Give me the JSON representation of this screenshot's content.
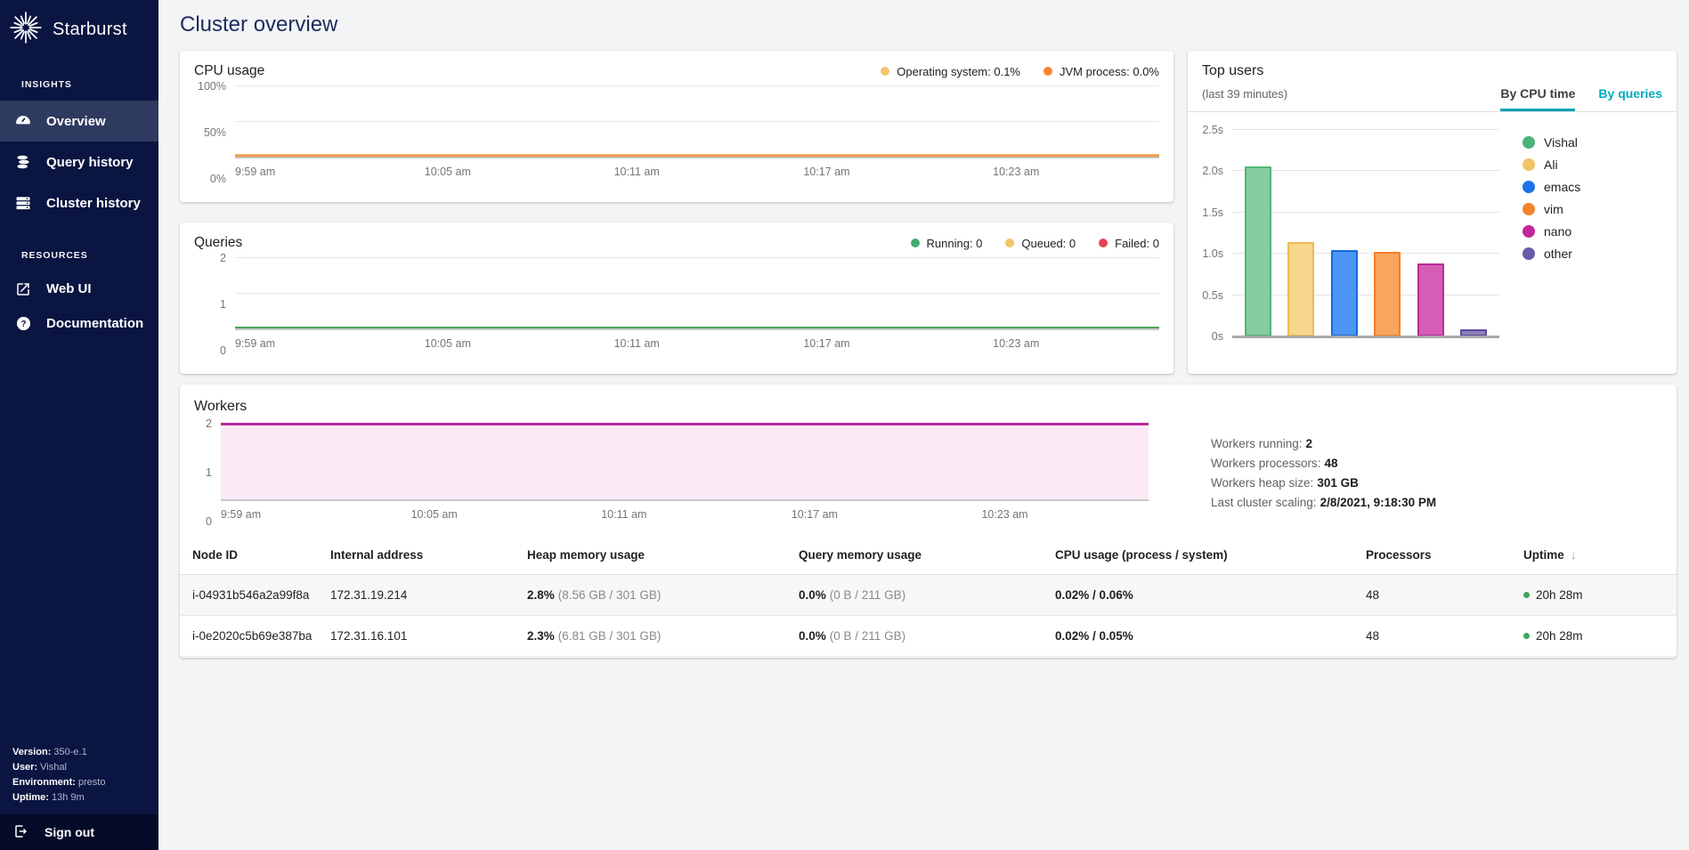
{
  "app": {
    "accent_teal": "#00a3b4"
  },
  "header": {
    "title": "Cluster overview"
  },
  "sidebar": {
    "logo_text": "Starburst",
    "insights_label": "INSIGHTS",
    "resources_label": "RESOURCES",
    "nav_insights": [
      {
        "label": "Overview",
        "icon": "gauge-icon",
        "active": true
      },
      {
        "label": "Query history",
        "icon": "database-icon",
        "active": false
      },
      {
        "label": "Cluster history",
        "icon": "server-icon",
        "active": false
      }
    ],
    "nav_resources": [
      {
        "label": "Web UI",
        "icon": "external-link-icon"
      },
      {
        "label": "Documentation",
        "icon": "help-icon"
      }
    ],
    "footer": {
      "version_label": "Version:",
      "version_value": "350-e.1",
      "user_label": "User:",
      "user_value": "Vishal",
      "environment_label": "Environment:",
      "environment_value": "presto",
      "uptime_label": "Uptime:",
      "uptime_value": "13h 9m"
    },
    "sign_out_label": "Sign out"
  },
  "cpu_card": {
    "title": "CPU usage",
    "legend": [
      {
        "label": "Operating system: 0.1%",
        "color": "#f3c46c"
      },
      {
        "label": "JVM process: 0.0%",
        "color": "#f9842d"
      }
    ]
  },
  "queries_card": {
    "title": "Queries",
    "legend": [
      {
        "label": "Running: 0",
        "color": "#47ab6c"
      },
      {
        "label": "Queued: 0",
        "color": "#f2c464"
      },
      {
        "label": "Failed: 0",
        "color": "#e8434e"
      }
    ]
  },
  "top_users_card": {
    "title": "Top users",
    "subtitle": "(last 39 minutes)",
    "tabs": [
      {
        "label": "By CPU time",
        "active": true
      },
      {
        "label": "By queries",
        "active": false
      }
    ]
  },
  "workers_card": {
    "title": "Workers",
    "stats": [
      {
        "label": "Workers running:",
        "value": "2"
      },
      {
        "label": "Workers processors:",
        "value": "48"
      },
      {
        "label": "Workers heap size:",
        "value": "301 GB"
      },
      {
        "label": "Last cluster scaling:",
        "value": "2/8/2021, 9:18:30 PM"
      }
    ]
  },
  "workers_table": {
    "columns": [
      "Node ID",
      "Internal address",
      "Heap memory usage",
      "Query memory usage",
      "CPU usage (process / system)",
      "Processors",
      "Uptime"
    ],
    "sort_icon": "↓",
    "status_color": "#3da75a",
    "rows": [
      {
        "node_id": "i-04931b546a2a99f8a",
        "internal_address": "172.31.19.214",
        "heap_pct": "2.8%",
        "heap_detail": "(8.56 GB / 301 GB)",
        "query_pct": "0.0%",
        "query_detail": "(0 B / 211 GB)",
        "cpu_pct": "0.02%  /  0.06%",
        "processors": "48",
        "uptime": "20h 28m"
      },
      {
        "node_id": "i-0e2020c5b69e387ba",
        "internal_address": "172.31.16.101",
        "heap_pct": "2.3%",
        "heap_detail": "(6.81 GB / 301 GB)",
        "query_pct": "0.0%",
        "query_detail": "(0 B / 211 GB)",
        "cpu_pct": "0.02%  /  0.05%",
        "processors": "48",
        "uptime": "20h 28m"
      }
    ]
  },
  "chart_data": [
    {
      "id": "cpu_usage",
      "type": "line",
      "title": "CPU usage",
      "x": [
        "9:59 am",
        "10:05 am",
        "10:11 am",
        "10:17 am",
        "10:23 am"
      ],
      "yticks": [
        "100%",
        "50%",
        "0%"
      ],
      "ylim": [
        0,
        100
      ],
      "series": [
        {
          "name": "Operating system",
          "value": 0.1,
          "color": "#eeb068"
        },
        {
          "name": "JVM process",
          "value": 0.0,
          "color": "#f9842d"
        }
      ]
    },
    {
      "id": "queries",
      "type": "line",
      "title": "Queries",
      "x": [
        "9:59 am",
        "10:05 am",
        "10:11 am",
        "10:17 am",
        "10:23 am"
      ],
      "yticks": [
        "2",
        "1",
        "0"
      ],
      "ylim": [
        0,
        2
      ],
      "series": [
        {
          "name": "Running",
          "value": 0,
          "color": "#4aa55a"
        },
        {
          "name": "Queued",
          "value": 0,
          "color": "#f2c464"
        },
        {
          "name": "Failed",
          "value": 0,
          "color": "#e8434e"
        }
      ]
    },
    {
      "id": "top_users_by_cpu_time",
      "type": "bar",
      "title": "Top users (last 39 minutes, by CPU time)",
      "categories": [
        "Vishal",
        "Ali",
        "emacs",
        "vim",
        "nano",
        "other"
      ],
      "values": [
        2.06,
        1.14,
        1.05,
        1.02,
        0.88,
        0.09
      ],
      "unit": "s",
      "yticks": [
        "2.5s",
        "2.0s",
        "1.5s",
        "1.0s",
        "0.5s",
        "0s"
      ],
      "ylim": [
        0,
        2.5
      ],
      "bar_fills": [
        "#83cd9e",
        "#f8d68c",
        "#4b95f5",
        "#f9a55e",
        "#d55db6",
        "#8d7fba"
      ],
      "bar_borders": [
        "#50b576",
        "#efba55",
        "#1669e0",
        "#f57e27",
        "#bb2a9a",
        "#5c4c9e"
      ],
      "legend_colors": [
        "#4db37a",
        "#f2c465",
        "#1a73e8",
        "#f5832c",
        "#c2299b",
        "#6a5ba8"
      ]
    },
    {
      "id": "workers",
      "type": "area",
      "title": "Workers",
      "x": [
        "9:59 am",
        "10:05 am",
        "10:11 am",
        "10:17 am",
        "10:23 am"
      ],
      "yticks": [
        "2",
        "1",
        "0"
      ],
      "ylim": [
        0,
        2
      ],
      "value": 2,
      "line_color": "#bb2a9a",
      "fill_color": "#fbe9f6"
    }
  ]
}
